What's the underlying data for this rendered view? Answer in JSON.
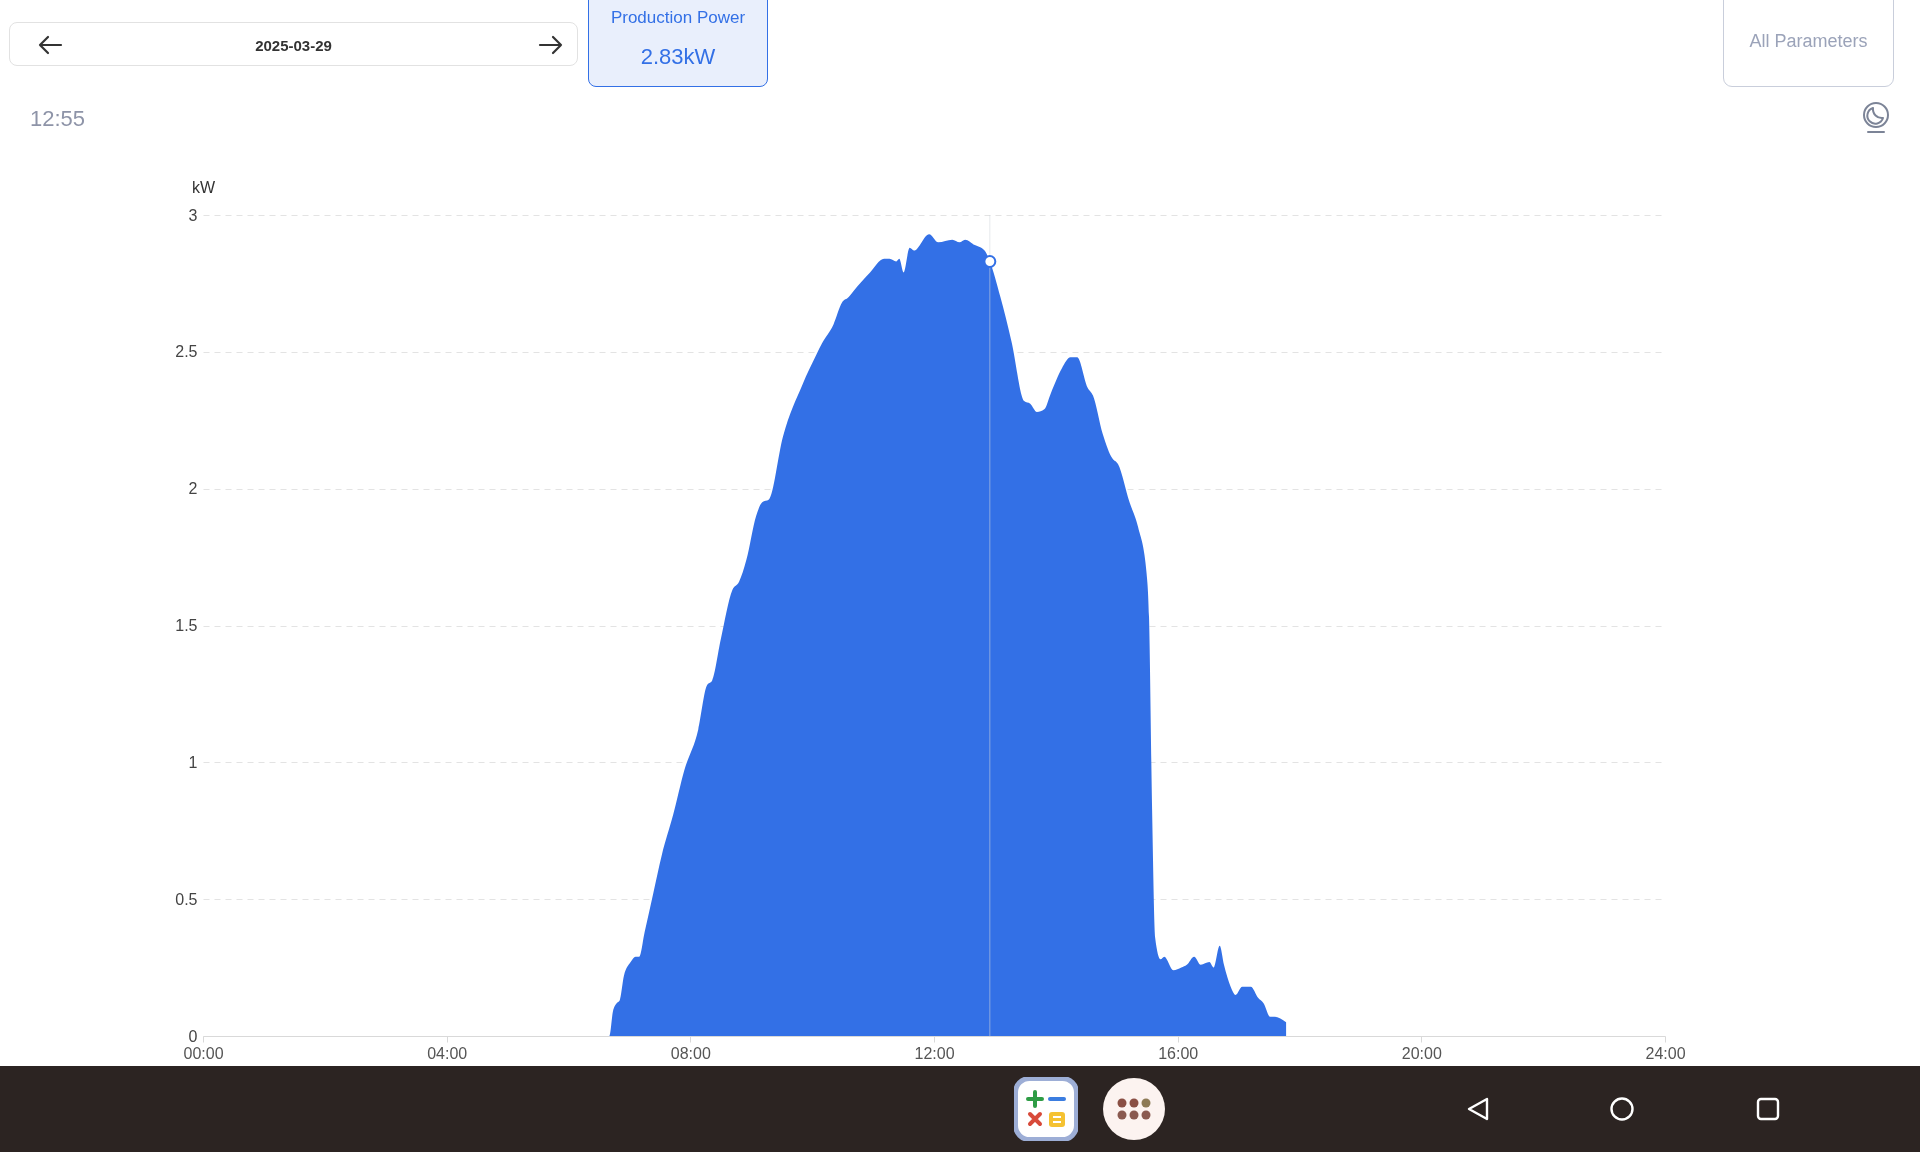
{
  "chart_data": {
    "type": "area",
    "ylabel": "kW",
    "annotations": [
      "2025-03-29",
      "Production Power",
      "2.83kW",
      "12:55",
      "All Parameters"
    ],
    "xlim": [
      0,
      24
    ],
    "xticks": [
      {
        "value": 0,
        "label": "00:00"
      },
      {
        "value": 4,
        "label": "04:00"
      },
      {
        "value": 8,
        "label": "08:00"
      },
      {
        "value": 12,
        "label": "12:00"
      },
      {
        "value": 16,
        "label": "16:00"
      },
      {
        "value": 20,
        "label": "20:00"
      },
      {
        "value": 24,
        "label": "24:00"
      }
    ],
    "ylim": [
      0,
      3
    ],
    "yticks": [
      0,
      0.5,
      1,
      1.5,
      2,
      2.5,
      3
    ],
    "grid": "y",
    "ref_lines": [
      {
        "axis": "x",
        "value": 12.9167,
        "color": "#d4d7dd"
      }
    ],
    "series": [
      {
        "color": "#3370e6",
        "x": [
          5.83,
          6.67,
          6.73,
          6.79,
          6.84,
          6.91,
          7.02,
          7.1,
          7.16,
          7.25,
          7.39,
          7.53,
          7.72,
          7.9,
          8.13,
          8.27,
          8.36,
          8.5,
          8.69,
          8.8,
          8.92,
          9.08,
          9.18,
          9.29,
          9.52,
          9.84,
          10.07,
          10.16,
          10.35,
          10.49,
          10.6,
          10.67,
          10.95,
          11.18,
          11.27,
          11.38,
          11.43,
          11.5,
          11.6,
          11.67,
          11.92,
          12.07,
          12.3,
          12.42,
          12.51,
          12.67,
          12.83,
          12.9167,
          13.09,
          13.27,
          13.48,
          13.58,
          13.69,
          13.81,
          13.92,
          14.1,
          14.24,
          14.35,
          14.52,
          14.61,
          14.77,
          14.93,
          15.02,
          15.21,
          15.35,
          15.49,
          15.53,
          15.58,
          15.63,
          15.72,
          15.78,
          15.93,
          16.06,
          16.15,
          16.27,
          16.38,
          16.52,
          16.59,
          16.69,
          16.76,
          16.87,
          16.95,
          17.06,
          17.2,
          17.32,
          17.41,
          17.52,
          17.59,
          17.78
        ],
        "values": [
          0,
          0,
          0.09,
          0.12,
          0.13,
          0.22,
          0.27,
          0.29,
          0.29,
          0.38,
          0.52,
          0.66,
          0.81,
          0.97,
          1.12,
          1.28,
          1.3,
          1.45,
          1.63,
          1.66,
          1.74,
          1.9,
          1.95,
          1.96,
          2.19,
          2.38,
          2.49,
          2.53,
          2.6,
          2.68,
          2.7,
          2.72,
          2.79,
          2.84,
          2.84,
          2.83,
          2.84,
          2.79,
          2.88,
          2.87,
          2.93,
          2.9,
          2.91,
          2.9,
          2.91,
          2.89,
          2.87,
          2.83,
          2.7,
          2.54,
          2.32,
          2.31,
          2.28,
          2.29,
          2.35,
          2.44,
          2.48,
          2.48,
          2.37,
          2.34,
          2.2,
          2.11,
          2.09,
          1.95,
          1.86,
          1.69,
          1.53,
          0.83,
          0.36,
          0.28,
          0.29,
          0.24,
          0.25,
          0.26,
          0.29,
          0.26,
          0.27,
          0.25,
          0.33,
          0.26,
          0.18,
          0.15,
          0.18,
          0.18,
          0.14,
          0.12,
          0.07,
          0.07,
          0.05
        ]
      },
      {
        "type": "scatter",
        "color": "#3370e6",
        "marker": "circle",
        "x": [
          12.9167
        ],
        "values": [
          2.83
        ]
      }
    ]
  }
}
